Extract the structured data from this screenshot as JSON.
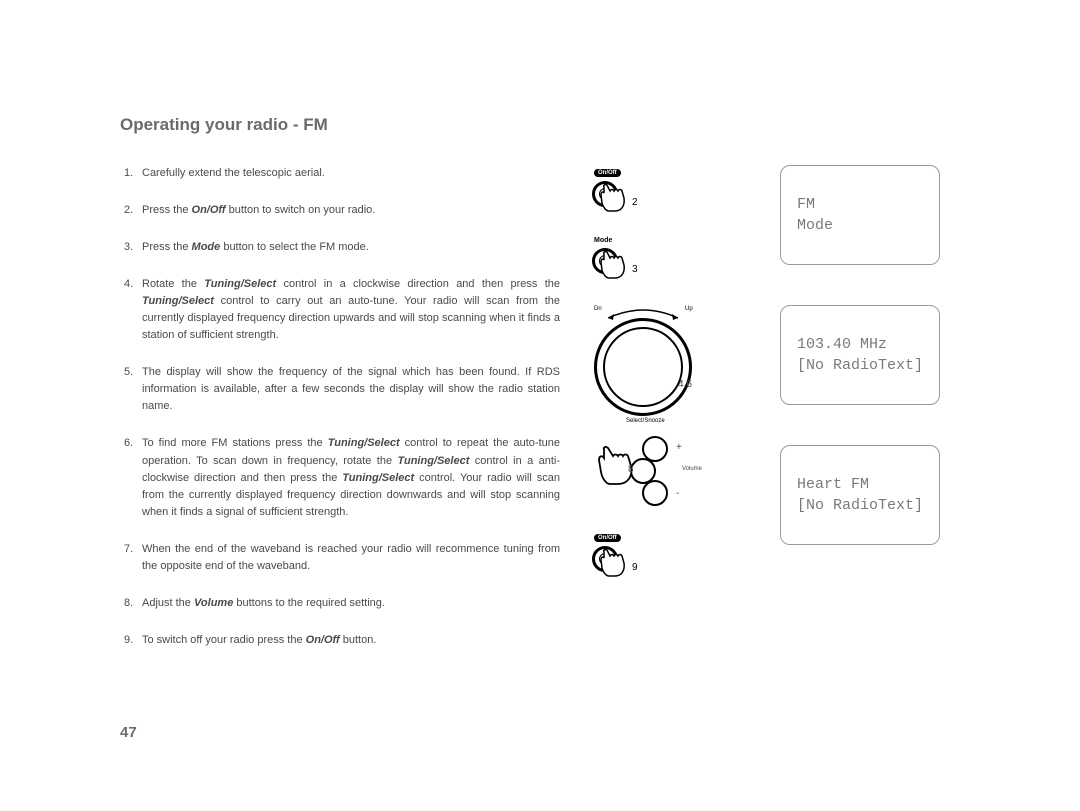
{
  "title": "Operating your radio - FM",
  "page_number": "47",
  "steps": {
    "n1": "1.",
    "t1": "Carefully extend the telescopic aerial.",
    "n2": "2.",
    "t2": "Press the <b>On/Off</b> button to switch on your radio.",
    "n3": "3.",
    "t3": "Press the <b>Mode</b> button to select the FM mode.",
    "n4": "4.",
    "t4": "Rotate the <b>Tuning/Select</b> control in a clockwise direction and then press the <b>Tuning/Select</b> control to carry out an auto-tune. Your radio will scan from the currently displayed frequency direction upwards and will stop scanning when it finds a station of sufficient strength.",
    "n5": "5.",
    "t5": "The display will show the frequency of the signal which has been found. If RDS information is available, after a few seconds the display will show the radio station name.",
    "n6": "6.",
    "t6": "To find more FM stations press the <b>Tuning/Select</b> control to repeat the auto-tune operation. To scan down in frequency, rotate the <b>Tuning/Select</b> control in a anti-clockwise direction and then press the <b>Tuning/Select</b> control. Your radio will scan from the currently displayed frequency direction downwards and will stop scanning when it finds a signal of sufficient strength.",
    "n7": "7.",
    "t7": "When the end of the waveband is reached your radio will recommence tuning from the opposite end of the waveband.",
    "n8": "8.",
    "t8": "Adjust the <b>Volume</b> buttons to the required setting.",
    "n9": "9.",
    "t9": "To switch off your radio press the <b>On/Off</b> button."
  },
  "figures": {
    "label_onoff": "On/Off",
    "label_mode": "Mode",
    "label_dn": "Dn",
    "label_up": "Up",
    "label_select": "Select/Snooze",
    "label_volume": "Volume",
    "num_2": "2",
    "num_3": "3",
    "num_46": "4,6",
    "num_8": "8",
    "num_9": "9",
    "plus": "+",
    "minus": "-"
  },
  "displays": {
    "d1_l1": "FM",
    "d1_l2": "Mode",
    "d2_l1": "103.40 MHz",
    "d2_l2": "[No RadioText]",
    "d3_l1": "Heart FM",
    "d3_l2": "[No RadioText]"
  },
  "colors": {
    "text": "#4a4a4a",
    "title": "#6b6b6b",
    "border": "#9a9a9a",
    "mono": "#7a7a7a",
    "black": "#000000",
    "bg": "#ffffff"
  }
}
